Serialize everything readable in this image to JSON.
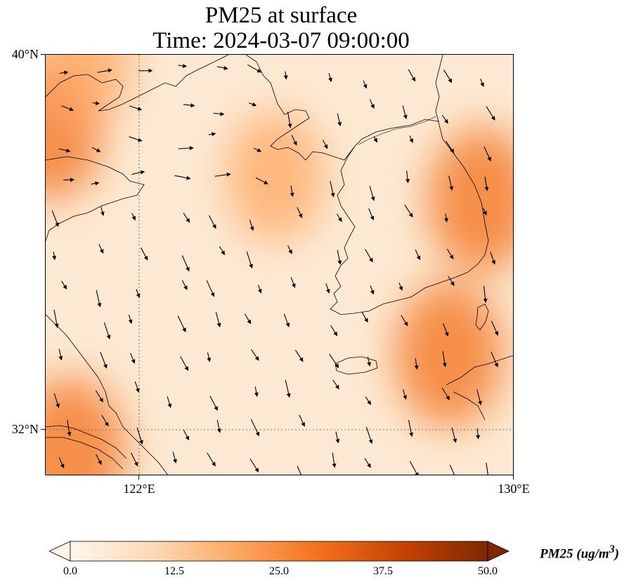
{
  "title": {
    "line1": "PM25 at surface",
    "line2": "Time: 2024-03-07 09:00:00"
  },
  "map": {
    "lat_range": [
      31.0,
      40.0
    ],
    "lon_range": [
      120.0,
      130.0
    ],
    "lat_ticks": [
      {
        "value": 40,
        "label": "40°N"
      },
      {
        "value": 32,
        "label": "32°N"
      }
    ],
    "lon_ticks": [
      {
        "value": 122,
        "label": "122°E"
      },
      {
        "value": 130,
        "label": "130°E"
      }
    ],
    "gridlines": {
      "lat": 32,
      "lon": 122,
      "style": "dotted"
    }
  },
  "colorbar": {
    "label": "PM25 (ug/m",
    "label_sup": "3",
    "label_close": ")",
    "min": 0.0,
    "max": 50.0,
    "ticks": [
      "0.0",
      "12.5",
      "25.0",
      "37.5",
      "50.0"
    ],
    "colormap": [
      "#fff5eb",
      "#fdd9b4",
      "#fda762",
      "#f3701b",
      "#c54102",
      "#7f2704"
    ]
  },
  "chart_data": {
    "type": "heatmap",
    "variable": "PM25 at surface",
    "units": "ug/m3",
    "high_areas": [
      {
        "lat": 31.5,
        "lon": 120.5,
        "value": 25
      },
      {
        "lat": 33.6,
        "lon": 128.6,
        "value": 22
      },
      {
        "lat": 36.9,
        "lon": 129.3,
        "value": 22
      },
      {
        "lat": 38.4,
        "lon": 120.1,
        "value": 20
      },
      {
        "lat": 37.4,
        "lon": 124.9,
        "value": 15
      },
      {
        "lat": 39.9,
        "lon": 120.8,
        "value": 15
      }
    ],
    "wind_vectors": "Black arrows showing near-surface wind direction, predominantly north-to-south flow over the Yellow Sea"
  }
}
